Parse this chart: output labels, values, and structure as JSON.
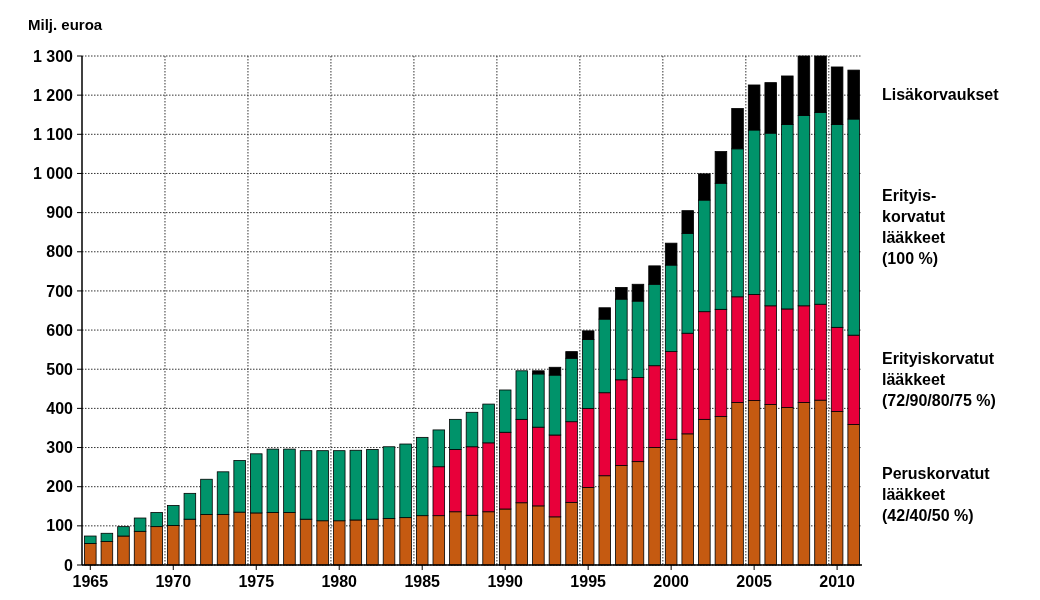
{
  "chart_data": {
    "type": "bar",
    "stacked": true,
    "ylabel": "Milj. euroa",
    "categories": [
      "1965",
      null,
      null,
      null,
      null,
      "1970",
      null,
      null,
      null,
      null,
      "1975",
      null,
      null,
      null,
      null,
      "1980",
      null,
      null,
      null,
      null,
      "1985",
      null,
      null,
      null,
      null,
      "1990",
      null,
      null,
      null,
      null,
      "1995",
      null,
      null,
      null,
      null,
      "2000",
      null,
      null,
      null,
      null,
      "2005",
      null,
      null,
      null,
      null,
      "2010",
      null
    ],
    "ylim": [
      0,
      1300
    ],
    "yticks": [
      0,
      100,
      200,
      300,
      400,
      500,
      600,
      700,
      800,
      900,
      {
        "value": 1000,
        "label": "1 000"
      },
      {
        "value": 1100,
        "label": "1 100"
      },
      {
        "value": 1200,
        "label": "1 200"
      },
      {
        "value": 1300,
        "label": "1 300"
      }
    ],
    "grid": true,
    "legend": "right",
    "series": [
      {
        "name": "Peruskorvatut\nlääkkeet\n(42/40/50 %)",
        "color": "#c55a11",
        "values": [
          55,
          60,
          74,
          86,
          98,
          101,
          117,
          129,
          129,
          135,
          133,
          134,
          134,
          117,
          113,
          113,
          115,
          117,
          119,
          121,
          126,
          126,
          136,
          127,
          136,
          143,
          159,
          151,
          123,
          160,
          198,
          228,
          254,
          264,
          300,
          321,
          335,
          372,
          379,
          415,
          420,
          410,
          402,
          415,
          421,
          392,
          359
        ]
      },
      {
        "name": "Erityiskorvatut\nlääkkeet\n(72/90/80/75 %)",
        "color": "#e8003a",
        "values": [
          null,
          null,
          null,
          null,
          null,
          null,
          null,
          null,
          null,
          null,
          null,
          null,
          null,
          null,
          null,
          null,
          null,
          null,
          null,
          null,
          null,
          125,
          159,
          175,
          176,
          196,
          213,
          201,
          209,
          206,
          202,
          212,
          219,
          215,
          209,
          224,
          257,
          275,
          274,
          270,
          271,
          252,
          252,
          247,
          245,
          215,
          228
        ]
      },
      {
        "name": "Erityis-\nkorvatut\nlääkkeet\n(100 %)",
        "color": "#00936a",
        "values": [
          19,
          21,
          24,
          34,
          36,
          51,
          66,
          90,
          109,
          132,
          151,
          162,
          162,
          175,
          179,
          179,
          178,
          178,
          183,
          188,
          200,
          94,
          77,
          88,
          99,
          108,
          124,
          136,
          153,
          162,
          176,
          188,
          206,
          195,
          208,
          221,
          255,
          285,
          322,
          378,
          420,
          441,
          471,
          486,
          490,
          518,
          552
        ]
      },
      {
        "name": "Lisäkorvaukset",
        "color": "#000000",
        "values": [
          null,
          null,
          null,
          null,
          null,
          null,
          null,
          null,
          null,
          null,
          null,
          null,
          null,
          null,
          null,
          null,
          null,
          null,
          null,
          null,
          null,
          null,
          null,
          null,
          null,
          null,
          null,
          8,
          20,
          17,
          22,
          29,
          30,
          43,
          47,
          56,
          58,
          67,
          81,
          103,
          115,
          129,
          124,
          152,
          144,
          147,
          125
        ]
      }
    ]
  }
}
